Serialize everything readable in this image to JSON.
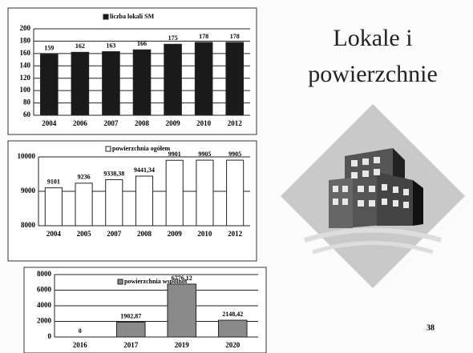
{
  "slide_title_line1": "Lokale i",
  "slide_title_line2": "powierzchnie",
  "page_number": "38",
  "chart_data": [
    {
      "type": "bar",
      "categories": [
        "2004",
        "2006",
        "2007",
        "2008",
        "2009",
        "2010",
        "2012"
      ],
      "series": [
        {
          "name": "liczba lokali SM",
          "color": "#1a1a1a",
          "values": [
            159,
            162,
            163,
            166,
            175,
            178,
            178
          ]
        }
      ],
      "ylim": [
        60,
        200
      ],
      "yticks": [
        60,
        80,
        100,
        120,
        140,
        160,
        180,
        200
      ],
      "grid": true
    },
    {
      "type": "bar",
      "categories": [
        "2004",
        "2005",
        "2007",
        "2008",
        "2009",
        "2010",
        "2012"
      ],
      "series": [
        {
          "name": "powierzchnia ogółem",
          "color": "#ffffff",
          "values": [
            9101,
            9236,
            9338.38,
            9441.34,
            9901,
            9905,
            9905
          ],
          "value_labels": [
            "9101",
            "9236",
            "9338,38",
            "9441,34",
            "9901",
            "9905",
            "9905"
          ]
        }
      ],
      "ylim": [
        8000,
        10000
      ],
      "yticks": [
        8000,
        9000,
        10000
      ],
      "grid": true
    },
    {
      "type": "bar",
      "categories": [
        "2016",
        "2017",
        "2019",
        "2020"
      ],
      "series": [
        {
          "name": "powierzchnia wspólnot",
          "color": "#8a8a8a",
          "values": [
            0,
            1902.87,
            6776.12,
            2148.42
          ],
          "value_labels": [
            "0",
            "1902,87",
            "6776,12",
            "2148,42"
          ]
        }
      ],
      "ylim": [
        0,
        8000
      ],
      "yticks": [
        0,
        2000,
        4000,
        6000,
        8000
      ],
      "grid": true
    }
  ]
}
